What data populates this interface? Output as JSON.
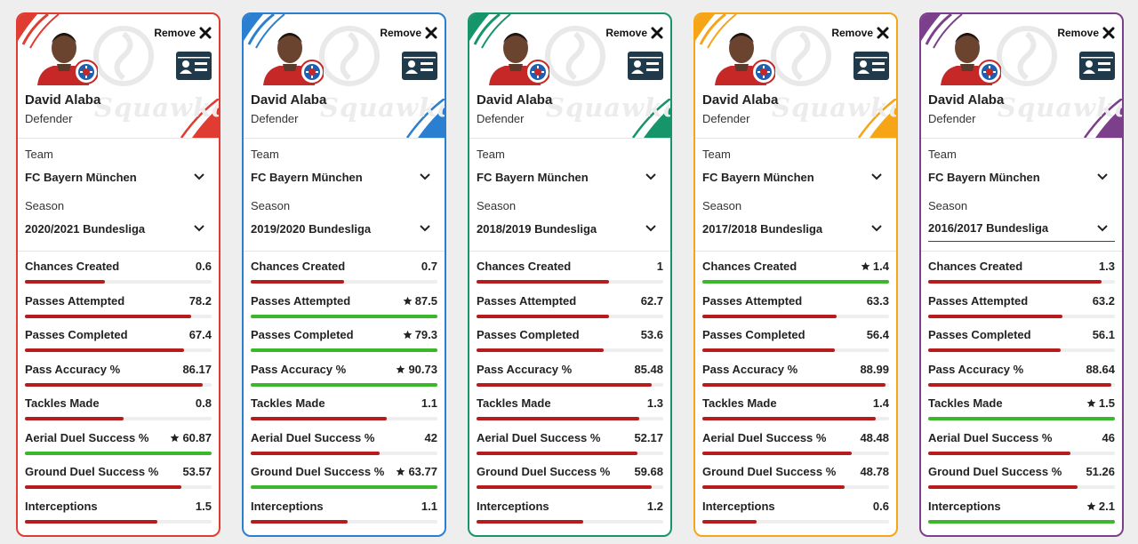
{
  "labels": {
    "remove": "Remove",
    "team": "Team",
    "season": "Season",
    "watermark": "Squawka"
  },
  "colors": {
    "bar_normal": "#b71c1c",
    "bar_best": "#3bb82a",
    "track": "#eeeeee"
  },
  "stat_names": [
    "Chances Created",
    "Passes Attempted",
    "Passes Completed",
    "Pass Accuracy %",
    "Tackles Made",
    "Aerial Duel Success %",
    "Ground Duel Success %",
    "Interceptions"
  ],
  "cards": [
    {
      "accent": "#e03c31",
      "name": "David Alaba",
      "position": "Defender",
      "team": "FC Bayern München",
      "season": "2020/2021 Bundesliga",
      "season_focused": false,
      "stats": [
        {
          "value": "0.6",
          "fill": 0.43,
          "best": false
        },
        {
          "value": "78.2",
          "fill": 0.89,
          "best": false
        },
        {
          "value": "67.4",
          "fill": 0.85,
          "best": false
        },
        {
          "value": "86.17",
          "fill": 0.95,
          "best": false
        },
        {
          "value": "0.8",
          "fill": 0.53,
          "best": false
        },
        {
          "value": "60.87",
          "fill": 1.0,
          "best": true
        },
        {
          "value": "53.57",
          "fill": 0.84,
          "best": false
        },
        {
          "value": "1.5",
          "fill": 0.71,
          "best": false
        }
      ]
    },
    {
      "accent": "#2a7fd0",
      "name": "David Alaba",
      "position": "Defender",
      "team": "FC Bayern München",
      "season": "2019/2020 Bundesliga",
      "season_focused": false,
      "stats": [
        {
          "value": "0.7",
          "fill": 0.5,
          "best": false
        },
        {
          "value": "87.5",
          "fill": 1.0,
          "best": true
        },
        {
          "value": "79.3",
          "fill": 1.0,
          "best": true
        },
        {
          "value": "90.73",
          "fill": 1.0,
          "best": true
        },
        {
          "value": "1.1",
          "fill": 0.73,
          "best": false
        },
        {
          "value": "42",
          "fill": 0.69,
          "best": false
        },
        {
          "value": "63.77",
          "fill": 1.0,
          "best": true
        },
        {
          "value": "1.1",
          "fill": 0.52,
          "best": false
        }
      ]
    },
    {
      "accent": "#16956b",
      "name": "David Alaba",
      "position": "Defender",
      "team": "FC Bayern München",
      "season": "2018/2019 Bundesliga",
      "season_focused": false,
      "stats": [
        {
          "value": "1",
          "fill": 0.71,
          "best": false
        },
        {
          "value": "62.7",
          "fill": 0.71,
          "best": false
        },
        {
          "value": "53.6",
          "fill": 0.68,
          "best": false
        },
        {
          "value": "85.48",
          "fill": 0.94,
          "best": false
        },
        {
          "value": "1.3",
          "fill": 0.87,
          "best": false
        },
        {
          "value": "52.17",
          "fill": 0.86,
          "best": false
        },
        {
          "value": "59.68",
          "fill": 0.94,
          "best": false
        },
        {
          "value": "1.2",
          "fill": 0.57,
          "best": false
        }
      ]
    },
    {
      "accent": "#f5a516",
      "name": "David Alaba",
      "position": "Defender",
      "team": "FC Bayern München",
      "season": "2017/2018 Bundesliga",
      "season_focused": false,
      "stats": [
        {
          "value": "1.4",
          "fill": 1.0,
          "best": true
        },
        {
          "value": "63.3",
          "fill": 0.72,
          "best": false
        },
        {
          "value": "56.4",
          "fill": 0.71,
          "best": false
        },
        {
          "value": "88.99",
          "fill": 0.98,
          "best": false
        },
        {
          "value": "1.4",
          "fill": 0.93,
          "best": false
        },
        {
          "value": "48.48",
          "fill": 0.8,
          "best": false
        },
        {
          "value": "48.78",
          "fill": 0.76,
          "best": false
        },
        {
          "value": "0.6",
          "fill": 0.29,
          "best": false
        }
      ]
    },
    {
      "accent": "#7b3f8c",
      "name": "David Alaba",
      "position": "Defender",
      "team": "FC Bayern München",
      "season": "2016/2017 Bundesliga",
      "season_focused": true,
      "stats": [
        {
          "value": "1.3",
          "fill": 0.93,
          "best": false
        },
        {
          "value": "63.2",
          "fill": 0.72,
          "best": false
        },
        {
          "value": "56.1",
          "fill": 0.71,
          "best": false
        },
        {
          "value": "88.64",
          "fill": 0.98,
          "best": false
        },
        {
          "value": "1.5",
          "fill": 1.0,
          "best": true
        },
        {
          "value": "46",
          "fill": 0.76,
          "best": false
        },
        {
          "value": "51.26",
          "fill": 0.8,
          "best": false
        },
        {
          "value": "2.1",
          "fill": 1.0,
          "best": true
        }
      ]
    }
  ]
}
